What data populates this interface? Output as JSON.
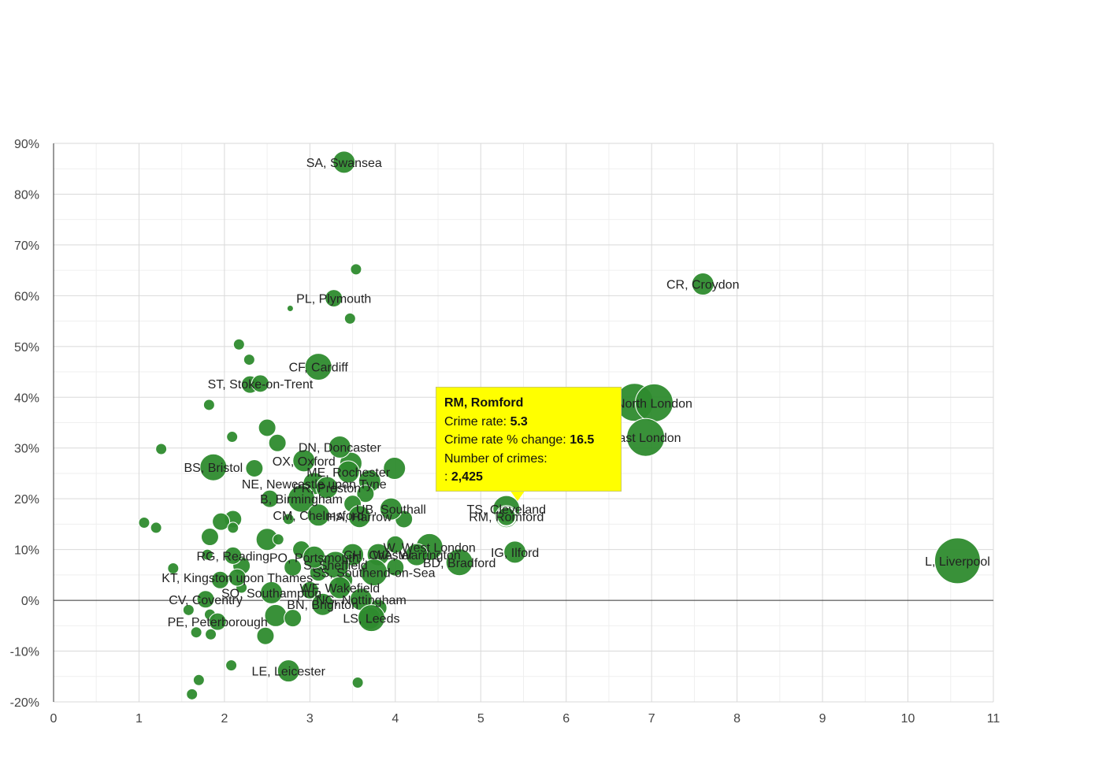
{
  "colors": {
    "bubble": "#2e8b2e",
    "bubble_stroke": "#1f6d1f",
    "tooltip_bg": "#ffff00",
    "grid": "#d9d9d9",
    "zero_line": "#333333"
  },
  "chart_data": {
    "type": "scatter",
    "title": "",
    "xlabel": "",
    "ylabel": "",
    "xlim": [
      0,
      11
    ],
    "ylim": [
      -20,
      90
    ],
    "x_ticks": [
      "0",
      "1",
      "2",
      "3",
      "4",
      "5",
      "6",
      "7",
      "8",
      "9",
      "10",
      "11"
    ],
    "y_ticks": [
      "-20%",
      "-10%",
      "0%",
      "10%",
      "20%",
      "30%",
      "40%",
      "50%",
      "60%",
      "70%",
      "80%",
      "90%"
    ],
    "grid": true,
    "points": [
      {
        "label": "SA, Swansea",
        "x": 3.4,
        "y": 86.3,
        "size": 3
      },
      {
        "label": "CR, Croydon",
        "x": 7.6,
        "y": 62.3,
        "size": 3
      },
      {
        "label": "PL, Plymouth",
        "x": 3.28,
        "y": 59.5,
        "size": 2
      },
      {
        "label": "CF, Cardiff",
        "x": 3.1,
        "y": 46.0,
        "size": 4
      },
      {
        "label": "ST, Stoke-on-Trent",
        "x": 2.42,
        "y": 42.7,
        "size": 2
      },
      {
        "label": "North London",
        "x": 7.03,
        "y": 38.9,
        "size": 6
      },
      {
        "label": "East London",
        "x": 6.93,
        "y": 32.1,
        "size": 6
      },
      {
        "label": "DN, Doncaster",
        "x": 3.35,
        "y": 30.2,
        "size": 3
      },
      {
        "label": "OX, Oxford",
        "x": 2.93,
        "y": 27.5,
        "size": 3
      },
      {
        "label": "BS, Bristol",
        "x": 1.87,
        "y": 26.2,
        "size": 4
      },
      {
        "label": "ME, Rochester",
        "x": 3.45,
        "y": 25.3,
        "size": 3
      },
      {
        "label": "NE, Newcastle upon Tyne",
        "x": 3.05,
        "y": 23.0,
        "size": 3
      },
      {
        "label": "PR, Preston",
        "x": 3.2,
        "y": 22.2,
        "size": 3
      },
      {
        "label": "B, Birmingham",
        "x": 2.9,
        "y": 20.0,
        "size": 4
      },
      {
        "label": "UB, Southall",
        "x": 3.95,
        "y": 18.0,
        "size": 3
      },
      {
        "label": "CM, Chelmsford",
        "x": 3.1,
        "y": 16.8,
        "size": 3
      },
      {
        "label": "HA, Harrow",
        "x": 3.58,
        "y": 16.5,
        "size": 3
      },
      {
        "label": "TS, Cleveland",
        "x": 5.3,
        "y": 18.0,
        "size": 4
      },
      {
        "label": "RM, Romford",
        "x": 5.3,
        "y": 16.5,
        "size": 3
      },
      {
        "label": "W, West London",
        "x": 4.4,
        "y": 10.5,
        "size": 4
      },
      {
        "label": "IG, Ilford",
        "x": 5.4,
        "y": 9.5,
        "size": 3
      },
      {
        "label": "CH, Chester",
        "x": 3.8,
        "y": 9.0,
        "size": 3
      },
      {
        "label": "WA, Warrington",
        "x": 4.25,
        "y": 9.0,
        "size": 3
      },
      {
        "label": "L, Liverpool",
        "x": 10.58,
        "y": 7.8,
        "size": 7
      },
      {
        "label": "BD, Bradford",
        "x": 4.75,
        "y": 7.5,
        "size": 4
      },
      {
        "label": "PO, Portsmouth",
        "x": 3.05,
        "y": 8.5,
        "size": 3
      },
      {
        "label": "S, Sheffield",
        "x": 3.3,
        "y": 7.0,
        "size": 4
      },
      {
        "label": "RG, Reading",
        "x": 2.1,
        "y": 8.8,
        "size": 2
      },
      {
        "label": "SS, Southend-on-Sea",
        "x": 3.75,
        "y": 5.5,
        "size": 4
      },
      {
        "label": "KT, Kingston upon Thames",
        "x": 2.15,
        "y": 4.5,
        "size": 2
      },
      {
        "label": "WF, Wakefield",
        "x": 3.35,
        "y": 2.5,
        "size": 3
      },
      {
        "label": "SO, Southampton",
        "x": 2.55,
        "y": 1.5,
        "size": 3
      },
      {
        "label": "NG, Nottingham",
        "x": 3.6,
        "y": 0.2,
        "size": 3
      },
      {
        "label": "CV, Coventry",
        "x": 1.78,
        "y": 0.2,
        "size": 2
      },
      {
        "label": "BN, Brighton",
        "x": 3.15,
        "y": -0.8,
        "size": 3
      },
      {
        "label": "PE, Peterborough",
        "x": 1.92,
        "y": -4.2,
        "size": 2
      },
      {
        "label": "LS, Leeds",
        "x": 3.72,
        "y": -3.5,
        "size": 4
      },
      {
        "label": "LE, Leicester",
        "x": 2.75,
        "y": -13.9,
        "size": 3
      },
      {
        "label": "",
        "x": 3.54,
        "y": 65.2,
        "size": 1
      },
      {
        "label": "",
        "x": 3.47,
        "y": 55.5,
        "size": 1
      },
      {
        "label": "",
        "x": 2.77,
        "y": 57.5,
        "size": 0
      },
      {
        "label": "",
        "x": 2.17,
        "y": 50.4,
        "size": 1
      },
      {
        "label": "",
        "x": 2.29,
        "y": 47.4,
        "size": 1
      },
      {
        "label": "",
        "x": 2.3,
        "y": 42.5,
        "size": 2
      },
      {
        "label": "",
        "x": 1.82,
        "y": 38.5,
        "size": 1
      },
      {
        "label": "",
        "x": 6.8,
        "y": 39.0,
        "size": 6
      },
      {
        "label": "",
        "x": 2.5,
        "y": 34.0,
        "size": 2
      },
      {
        "label": "",
        "x": 2.62,
        "y": 31.0,
        "size": 2
      },
      {
        "label": "",
        "x": 2.09,
        "y": 32.2,
        "size": 1
      },
      {
        "label": "",
        "x": 1.26,
        "y": 29.8,
        "size": 1
      },
      {
        "label": "",
        "x": 2.35,
        "y": 26.0,
        "size": 2
      },
      {
        "label": "",
        "x": 3.48,
        "y": 27.0,
        "size": 3
      },
      {
        "label": "",
        "x": 3.99,
        "y": 26.0,
        "size": 3
      },
      {
        "label": "",
        "x": 3.7,
        "y": 23.5,
        "size": 3
      },
      {
        "label": "",
        "x": 3.65,
        "y": 21.0,
        "size": 2
      },
      {
        "label": "",
        "x": 2.53,
        "y": 20.0,
        "size": 2
      },
      {
        "label": "",
        "x": 3.5,
        "y": 19.0,
        "size": 2
      },
      {
        "label": "",
        "x": 2.75,
        "y": 16.0,
        "size": 1
      },
      {
        "label": "",
        "x": 4.1,
        "y": 16.0,
        "size": 2
      },
      {
        "label": "",
        "x": 2.1,
        "y": 16.0,
        "size": 2
      },
      {
        "label": "",
        "x": 1.96,
        "y": 15.5,
        "size": 2
      },
      {
        "label": "",
        "x": 1.06,
        "y": 15.3,
        "size": 1
      },
      {
        "label": "",
        "x": 1.2,
        "y": 14.3,
        "size": 1
      },
      {
        "label": "",
        "x": 2.1,
        "y": 14.3,
        "size": 1
      },
      {
        "label": "",
        "x": 1.83,
        "y": 12.5,
        "size": 2
      },
      {
        "label": "",
        "x": 2.5,
        "y": 12.0,
        "size": 3
      },
      {
        "label": "",
        "x": 2.63,
        "y": 12.0,
        "size": 1
      },
      {
        "label": "",
        "x": 2.9,
        "y": 10.0,
        "size": 2
      },
      {
        "label": "",
        "x": 4.0,
        "y": 11.0,
        "size": 2
      },
      {
        "label": "",
        "x": 1.8,
        "y": 9.0,
        "size": 1
      },
      {
        "label": "",
        "x": 3.5,
        "y": 9.0,
        "size": 3
      },
      {
        "label": "",
        "x": 2.2,
        "y": 6.8,
        "size": 2
      },
      {
        "label": "",
        "x": 1.4,
        "y": 6.3,
        "size": 1
      },
      {
        "label": "",
        "x": 2.8,
        "y": 6.5,
        "size": 2
      },
      {
        "label": "",
        "x": 4.0,
        "y": 6.5,
        "size": 2
      },
      {
        "label": "",
        "x": 3.1,
        "y": 5.5,
        "size": 2
      },
      {
        "label": "",
        "x": 1.95,
        "y": 4.0,
        "size": 2
      },
      {
        "label": "",
        "x": 3.4,
        "y": 4.0,
        "size": 2
      },
      {
        "label": "",
        "x": 2.2,
        "y": 2.5,
        "size": 1
      },
      {
        "label": "",
        "x": 3.0,
        "y": 2.0,
        "size": 2
      },
      {
        "label": "",
        "x": 3.8,
        "y": -1.5,
        "size": 2
      },
      {
        "label": "",
        "x": 1.58,
        "y": -1.9,
        "size": 1
      },
      {
        "label": "",
        "x": 1.83,
        "y": -2.8,
        "size": 1
      },
      {
        "label": "",
        "x": 2.6,
        "y": -3.0,
        "size": 3
      },
      {
        "label": "",
        "x": 2.8,
        "y": -3.5,
        "size": 2
      },
      {
        "label": "",
        "x": 3.7,
        "y": -3.5,
        "size": 3
      },
      {
        "label": "",
        "x": 1.67,
        "y": -6.3,
        "size": 1
      },
      {
        "label": "",
        "x": 1.84,
        "y": -6.7,
        "size": 1
      },
      {
        "label": "",
        "x": 2.48,
        "y": -7.0,
        "size": 2
      },
      {
        "label": "",
        "x": 2.08,
        "y": -12.8,
        "size": 1
      },
      {
        "label": "",
        "x": 1.7,
        "y": -15.7,
        "size": 1
      },
      {
        "label": "",
        "x": 3.56,
        "y": -16.2,
        "size": 1
      },
      {
        "label": "",
        "x": 1.62,
        "y": -18.5,
        "size": 1
      }
    ]
  },
  "tooltip": {
    "title": "RM, Romford",
    "rate_label": "Crime rate: ",
    "rate_value": "5.3",
    "change_label": "Crime rate % change: ",
    "change_value": "16.5",
    "count_label": "Number of crimes:",
    "count_prefix": ": ",
    "count_value": "2,425"
  }
}
